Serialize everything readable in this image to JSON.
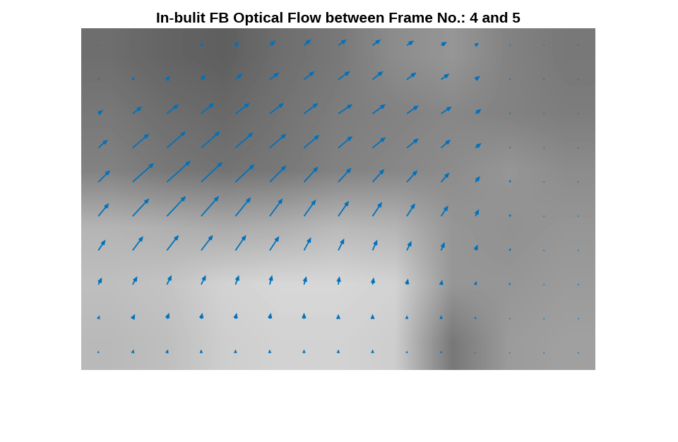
{
  "chart_data": {
    "type": "quiver",
    "title": "In-bulit FB Optical Flow between Frame No.: 4 and 5",
    "color": "#0072bd",
    "tick_labels": false,
    "xlim": [
      0,
      720
    ],
    "ylim": [
      480,
      0
    ],
    "background": {
      "clim": [
        0,
        255
      ],
      "cells": [
        [
          110,
          100,
          95,
          110,
          120,
          140,
          150,
          130,
          120
        ],
        [
          120,
          110,
          105,
          115,
          125,
          130,
          135,
          130,
          125
        ],
        [
          130,
          120,
          115,
          120,
          130,
          135,
          140,
          150,
          140
        ],
        [
          180,
          175,
          170,
          175,
          185,
          180,
          150,
          145,
          150
        ],
        [
          190,
          195,
          210,
          215,
          215,
          210,
          150,
          150,
          155
        ],
        [
          185,
          190,
          205,
          210,
          210,
          205,
          120,
          155,
          160
        ]
      ]
    },
    "x": [
      24,
      72,
      120,
      168,
      216,
      264,
      312,
      360,
      408,
      456,
      504,
      552,
      600,
      648,
      696
    ],
    "y": [
      24,
      72,
      120,
      168,
      216,
      264,
      312,
      360,
      408,
      456
    ],
    "u": [
      [
        0,
        0,
        1,
        2,
        3,
        5,
        6,
        7,
        7,
        6,
        5,
        3,
        1,
        0,
        0
      ],
      [
        1,
        2,
        3,
        4,
        6,
        8,
        9,
        10,
        9,
        8,
        7,
        4,
        1,
        0,
        0
      ],
      [
        4,
        8,
        10,
        11,
        12,
        12,
        12,
        12,
        11,
        10,
        9,
        5,
        1,
        0,
        0
      ],
      [
        8,
        14,
        16,
        16,
        15,
        14,
        13,
        12,
        11,
        10,
        8,
        5,
        1,
        0,
        0
      ],
      [
        10,
        18,
        20,
        18,
        16,
        14,
        12,
        11,
        10,
        9,
        7,
        4,
        1,
        0,
        0
      ],
      [
        9,
        14,
        16,
        15,
        13,
        11,
        10,
        9,
        8,
        7,
        6,
        3,
        1,
        0,
        0
      ],
      [
        6,
        9,
        10,
        10,
        9,
        8,
        6,
        5,
        4,
        4,
        3,
        2,
        1,
        0,
        0
      ],
      [
        3,
        4,
        4,
        4,
        3,
        2,
        2,
        1,
        1,
        1,
        1,
        1,
        0,
        0,
        0
      ],
      [
        1,
        2,
        2,
        1,
        1,
        1,
        0,
        0,
        0,
        0,
        0,
        0,
        0,
        0,
        0
      ],
      [
        0,
        1,
        1,
        0,
        0,
        0,
        0,
        0,
        0,
        0,
        0,
        0,
        0,
        0,
        0
      ]
    ],
    "v": [
      [
        0,
        0,
        1,
        2,
        3,
        4,
        5,
        5,
        5,
        4,
        3,
        2,
        1,
        0,
        0
      ],
      [
        1,
        2,
        3,
        4,
        5,
        6,
        7,
        7,
        7,
        6,
        5,
        3,
        1,
        0,
        0
      ],
      [
        3,
        6,
        8,
        9,
        9,
        9,
        9,
        8,
        8,
        7,
        6,
        4,
        1,
        0,
        0
      ],
      [
        7,
        12,
        14,
        14,
        13,
        12,
        11,
        10,
        9,
        8,
        7,
        4,
        1,
        1,
        0
      ],
      [
        10,
        16,
        18,
        17,
        15,
        14,
        13,
        12,
        11,
        10,
        8,
        5,
        2,
        1,
        0
      ],
      [
        11,
        15,
        17,
        17,
        16,
        15,
        14,
        13,
        12,
        11,
        9,
        6,
        2,
        1,
        1
      ],
      [
        9,
        12,
        13,
        13,
        13,
        12,
        11,
        10,
        9,
        8,
        7,
        5,
        2,
        1,
        1
      ],
      [
        6,
        7,
        8,
        8,
        8,
        8,
        7,
        7,
        6,
        5,
        4,
        3,
        2,
        1,
        1
      ],
      [
        3,
        4,
        5,
        5,
        5,
        5,
        5,
        4,
        4,
        3,
        3,
        2,
        1,
        1,
        0
      ],
      [
        2,
        3,
        3,
        3,
        3,
        3,
        3,
        3,
        3,
        2,
        2,
        1,
        1,
        0,
        0
      ]
    ]
  }
}
